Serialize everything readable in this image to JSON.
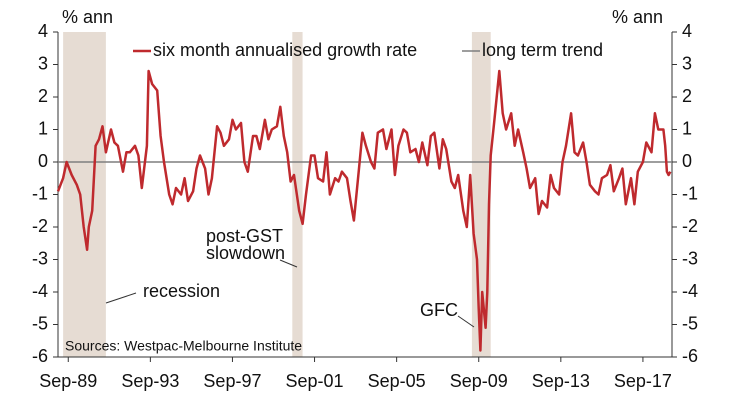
{
  "chart_data": {
    "type": "line",
    "y_unit_left": "% ann",
    "y_unit_right": "% ann",
    "x": [
      "1989-03",
      "1989-06",
      "1989-08",
      "1989-11",
      "1990-02",
      "1990-04",
      "1990-06",
      "1990-08",
      "1990-09",
      "1990-11",
      "1991-01",
      "1991-03",
      "1991-05",
      "1991-07",
      "1991-10",
      "1991-12",
      "1992-02",
      "1992-05",
      "1992-07",
      "1992-09",
      "1992-12",
      "1993-02",
      "1993-04",
      "1993-07",
      "1993-08",
      "1993-10",
      "1994-01",
      "1994-03",
      "1994-05",
      "1994-08",
      "1994-10",
      "1994-12",
      "1995-03",
      "1995-05",
      "1995-07",
      "1995-10",
      "1995-12",
      "1996-02",
      "1996-05",
      "1996-07",
      "1996-09",
      "1996-12",
      "1997-02",
      "1997-04",
      "1997-07",
      "1997-09",
      "1997-11",
      "1998-02",
      "1998-04",
      "1998-06",
      "1998-09",
      "1998-11",
      "1999-01",
      "1999-04",
      "1999-06",
      "1999-08",
      "1999-11",
      "2000-01",
      "2000-03",
      "2000-05",
      "2000-07",
      "2000-09",
      "2000-12",
      "2001-02",
      "2001-04",
      "2001-07",
      "2001-09",
      "2001-11",
      "2002-02",
      "2002-04",
      "2002-06",
      "2002-09",
      "2002-11",
      "2003-01",
      "2003-04",
      "2003-06",
      "2003-08",
      "2003-11",
      "2004-01",
      "2004-03",
      "2004-06",
      "2004-08",
      "2004-10",
      "2005-01",
      "2005-03",
      "2005-06",
      "2005-08",
      "2005-10",
      "2006-01",
      "2006-03",
      "2006-05",
      "2006-08",
      "2006-10",
      "2006-12",
      "2007-03",
      "2007-05",
      "2007-07",
      "2007-10",
      "2007-12",
      "2008-02",
      "2008-05",
      "2008-07",
      "2008-09",
      "2008-12",
      "2009-02",
      "2009-04",
      "2009-06",
      "2009-08",
      "2009-09",
      "2009-10",
      "2009-11",
      "2010-01",
      "2010-02",
      "2010-03",
      "2010-04",
      "2010-06",
      "2010-09",
      "2010-11",
      "2011-01",
      "2011-04",
      "2011-06",
      "2011-08",
      "2011-11",
      "2012-01",
      "2012-03",
      "2012-06",
      "2012-08",
      "2012-10",
      "2013-01",
      "2013-03",
      "2013-05",
      "2013-08",
      "2013-10",
      "2013-12",
      "2014-03",
      "2014-05",
      "2014-07",
      "2014-10",
      "2014-12",
      "2015-02",
      "2015-05",
      "2015-07",
      "2015-09",
      "2015-12",
      "2016-02",
      "2016-04",
      "2016-07",
      "2016-09",
      "2016-11",
      "2017-02",
      "2017-04",
      "2017-06",
      "2017-09",
      "2017-11",
      "2018-02",
      "2018-04",
      "2018-06",
      "2018-09",
      "2018-10",
      "2018-11",
      "2018-12",
      "2019-01"
    ],
    "series": [
      {
        "name": "six month annualised growth rate",
        "color": "#bf2a2e",
        "values": [
          -0.9,
          -0.5,
          0.0,
          -0.4,
          -0.7,
          -1.0,
          -2.0,
          -2.7,
          -2.0,
          -1.5,
          0.5,
          0.7,
          1.1,
          0.3,
          1.0,
          0.6,
          0.5,
          -0.3,
          0.3,
          0.3,
          0.5,
          0.2,
          -0.8,
          0.5,
          2.8,
          2.4,
          2.2,
          0.8,
          0.0,
          -1.0,
          -1.3,
          -0.8,
          -1.0,
          -0.5,
          -1.2,
          -0.9,
          -0.2,
          0.2,
          -0.2,
          -1.0,
          -0.5,
          1.1,
          0.9,
          0.5,
          0.7,
          1.3,
          1.0,
          1.2,
          0.0,
          -0.3,
          0.8,
          0.8,
          0.4,
          1.3,
          0.7,
          1.0,
          1.1,
          1.7,
          0.8,
          0.3,
          -0.6,
          -0.4,
          -1.5,
          -1.9,
          -1.0,
          0.2,
          0.2,
          -0.5,
          -0.6,
          0.3,
          -1.0,
          -0.5,
          -0.6,
          -0.3,
          -0.5,
          -1.2,
          -1.8,
          -0.2,
          0.9,
          0.5,
          0.0,
          -0.2,
          0.9,
          1.0,
          0.4,
          1.0,
          -0.4,
          0.5,
          1.0,
          0.9,
          0.3,
          0.4,
          0.0,
          0.6,
          -0.1,
          0.8,
          0.9,
          -0.2,
          0.7,
          0.4,
          -0.6,
          -0.8,
          -0.4,
          -1.5,
          -2.0,
          -0.4,
          -2.2,
          -3.0,
          -4.5,
          -5.8,
          -4.0,
          -5.1,
          -4.0,
          -1.3,
          0.2,
          1.2,
          2.8,
          1.5,
          1.0,
          1.5,
          0.5,
          1.0,
          0.3,
          -0.2,
          -0.8,
          -0.5,
          -1.6,
          -1.2,
          -1.4,
          -0.4,
          -0.8,
          -1.0,
          0.0,
          0.5,
          1.5,
          0.3,
          0.2,
          0.6,
          0.0,
          -0.7,
          -0.9,
          -1.0,
          -0.5,
          -0.4,
          -0.1,
          -0.9,
          -0.5,
          -0.2,
          -1.3,
          -0.5,
          -1.3,
          -0.3,
          0.0,
          0.6,
          0.3,
          1.5,
          1.0,
          1.0,
          0.5,
          -0.3,
          -0.4,
          -0.3
        ]
      }
    ],
    "trend": {
      "name": "long term trend",
      "color": "#7f7f7f",
      "value": 0
    },
    "shading": [
      {
        "start": "1989-06",
        "end": "1991-07"
      },
      {
        "start": "2000-08",
        "end": "2001-02"
      },
      {
        "start": "2009-05",
        "end": "2010-04"
      }
    ],
    "shade_color": "#e6dcd3",
    "annotations": {
      "recession": "recession",
      "gst": [
        "post-GST",
        "slowdown"
      ],
      "gfc": "GFC"
    },
    "source": "Sources: Westpac-Melbourne Institute",
    "xlim": [
      "1989-03",
      "2019-02"
    ],
    "xticks": [
      {
        "value": "1989-09",
        "label": "Sep-89"
      },
      {
        "value": "1993-09",
        "label": "Sep-93"
      },
      {
        "value": "1997-09",
        "label": "Sep-97"
      },
      {
        "value": "2001-09",
        "label": "Sep-01"
      },
      {
        "value": "2005-09",
        "label": "Sep-05"
      },
      {
        "value": "2009-09",
        "label": "Sep-09"
      },
      {
        "value": "2013-09",
        "label": "Sep-13"
      },
      {
        "value": "2017-09",
        "label": "Sep-17"
      }
    ],
    "ylim": [
      -6,
      4
    ],
    "yticks": [
      -6,
      -5,
      -4,
      -3,
      -2,
      -1,
      0,
      1,
      2,
      3,
      4
    ],
    "y2lim": [
      -6,
      4
    ],
    "y2ticks": [
      -6,
      -5,
      -4,
      -3,
      -2,
      -1,
      0,
      1,
      2,
      3,
      4
    ]
  }
}
